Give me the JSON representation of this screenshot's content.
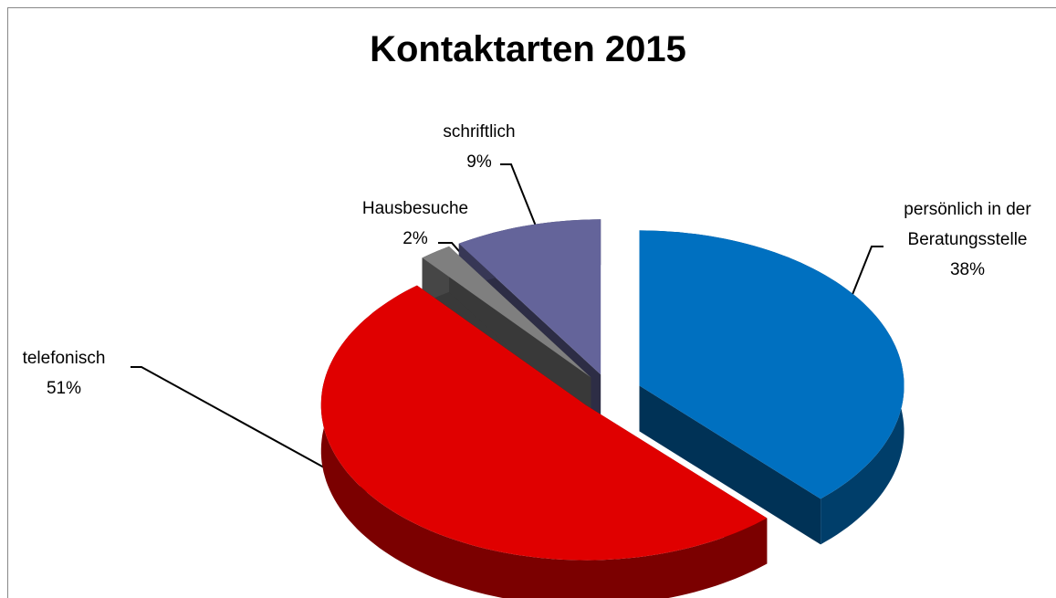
{
  "chart_data": {
    "type": "pie",
    "title": "Kontaktarten 2015",
    "categories": [
      "persönlich in der Beratungsstelle",
      "telefonisch",
      "Hausbesuche",
      "schriftlich"
    ],
    "values": [
      38,
      51,
      2,
      9
    ],
    "value_labels": [
      "38%",
      "51%",
      "2%",
      "9%"
    ],
    "colors": [
      "#0070c0",
      "#e00000",
      "#7f7f7f",
      "#64649a"
    ]
  }
}
